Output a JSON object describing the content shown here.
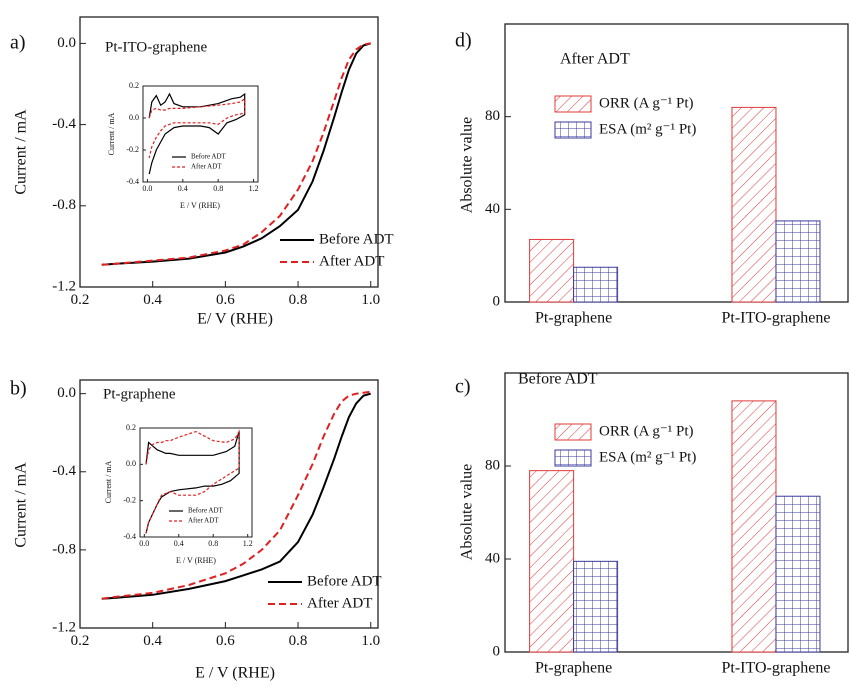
{
  "chart_data": [
    {
      "type": "line",
      "panel_label": "a)",
      "annotation": "Pt-ITO-graphene",
      "xlabel": "E/ V  (RHE)",
      "ylabel": "Current / mA",
      "xlim": [
        0.2,
        1.02
      ],
      "ylim": [
        -1.2,
        0.13
      ],
      "xticks": [
        0.2,
        0.4,
        0.6,
        0.8,
        {
          "value": 1,
          "label": "1.0"
        }
      ],
      "yticks": [
        -1.2,
        -0.8,
        -0.4,
        {
          "value": 0,
          "label": "0.0"
        }
      ],
      "x": [
        0.26,
        0.3,
        0.4,
        0.5,
        0.6,
        0.65,
        0.7,
        0.75,
        0.8,
        0.84,
        0.87,
        0.9,
        0.92,
        0.94,
        0.96,
        0.98,
        1.0
      ],
      "series": [
        {
          "name": "Before ADT",
          "color": "#000000",
          "style": "solid",
          "values": [
            -1.09,
            -1.085,
            -1.075,
            -1.06,
            -1.03,
            -1.0,
            -0.96,
            -0.9,
            -0.82,
            -0.68,
            -0.53,
            -0.36,
            -0.24,
            -0.13,
            -0.05,
            -0.01,
            0.0
          ]
        },
        {
          "name": "After ADT",
          "color": "#e02020",
          "style": "dashed",
          "values": [
            -1.09,
            -1.085,
            -1.07,
            -1.055,
            -1.02,
            -0.99,
            -0.93,
            -0.85,
            -0.72,
            -0.58,
            -0.44,
            -0.28,
            -0.17,
            -0.08,
            -0.03,
            -0.005,
            0.0
          ]
        }
      ]
    },
    {
      "type": "line",
      "xlabel": "E / V  (RHE)",
      "ylabel": "Current / mA",
      "xlim": [
        -0.05,
        1.25
      ],
      "ylim": [
        -0.4,
        0.2
      ],
      "xticks": [
        {
          "value": 0,
          "label": "0.0"
        },
        0.4,
        0.8,
        1.2
      ],
      "yticks": [
        -0.4,
        -0.2,
        {
          "value": 0,
          "label": "0.0"
        },
        0.2
      ],
      "x": [
        0.02,
        0.05,
        0.1,
        0.15,
        0.2,
        0.25,
        0.3,
        0.4,
        0.6,
        0.8,
        0.95,
        1.05,
        1.1,
        1.1,
        1.0,
        0.9,
        0.8,
        0.7,
        0.6,
        0.4,
        0.3,
        0.2,
        0.15,
        0.1,
        0.05,
        0.02
      ],
      "series": [
        {
          "name": "Before ADT",
          "color": "#000000",
          "style": "solid",
          "values": [
            0.0,
            0.1,
            0.14,
            0.08,
            0.1,
            0.15,
            0.09,
            0.07,
            0.07,
            0.09,
            0.12,
            0.13,
            0.15,
            0.02,
            -0.01,
            -0.03,
            -0.1,
            -0.06,
            -0.05,
            -0.05,
            -0.06,
            -0.1,
            -0.15,
            -0.2,
            -0.28,
            -0.35
          ]
        },
        {
          "name": "After ADT",
          "color": "#e02020",
          "style": "dashed",
          "values": [
            0.0,
            0.05,
            0.06,
            0.05,
            0.05,
            0.06,
            0.06,
            0.06,
            0.07,
            0.08,
            0.09,
            0.1,
            0.12,
            0.03,
            0.02,
            0.0,
            -0.04,
            -0.03,
            -0.03,
            -0.03,
            -0.03,
            -0.05,
            -0.08,
            -0.12,
            -0.18,
            -0.25
          ]
        }
      ]
    },
    {
      "type": "line",
      "panel_label": "b)",
      "annotation": "Pt-graphene",
      "xlabel": "E / V  (RHE)",
      "ylabel": "Current / mA",
      "xlim": [
        0.2,
        1.02
      ],
      "ylim": [
        -1.2,
        0.07
      ],
      "xticks": [
        0.2,
        0.4,
        0.6,
        0.8,
        {
          "value": 1,
          "label": "1.0"
        }
      ],
      "yticks": [
        -1.2,
        -0.8,
        -0.4,
        {
          "value": 0,
          "label": "0.0"
        }
      ],
      "x": [
        0.26,
        0.3,
        0.4,
        0.5,
        0.6,
        0.65,
        0.7,
        0.75,
        0.8,
        0.84,
        0.87,
        0.9,
        0.92,
        0.94,
        0.96,
        0.98,
        1.0
      ],
      "series": [
        {
          "name": "Before ADT",
          "color": "#000000",
          "style": "solid",
          "values": [
            -1.05,
            -1.045,
            -1.03,
            -1.0,
            -0.96,
            -0.93,
            -0.9,
            -0.86,
            -0.76,
            -0.62,
            -0.48,
            -0.33,
            -0.22,
            -0.12,
            -0.05,
            -0.01,
            0.0
          ]
        },
        {
          "name": "After ADT",
          "color": "#e02020",
          "style": "dashed",
          "values": [
            -1.05,
            -1.04,
            -1.02,
            -0.98,
            -0.92,
            -0.87,
            -0.8,
            -0.7,
            -0.52,
            -0.36,
            -0.22,
            -0.1,
            -0.04,
            -0.01,
            0.0,
            0.005,
            0.01
          ]
        }
      ]
    },
    {
      "type": "line",
      "xlabel": "E / V  (RHE)",
      "ylabel": "Current / mA",
      "xlim": [
        -0.05,
        1.25
      ],
      "ylim": [
        -0.4,
        0.2
      ],
      "xticks": [
        {
          "value": 0,
          "label": "0.0"
        },
        0.4,
        0.8,
        1.2
      ],
      "yticks": [
        -0.4,
        -0.2,
        {
          "value": 0,
          "label": "0.0"
        },
        0.2
      ],
      "x": [
        0.02,
        0.05,
        0.1,
        0.15,
        0.2,
        0.25,
        0.3,
        0.4,
        0.6,
        0.8,
        0.95,
        1.05,
        1.1,
        1.1,
        1.0,
        0.9,
        0.8,
        0.7,
        0.6,
        0.4,
        0.3,
        0.2,
        0.15,
        0.1,
        0.05,
        0.02
      ],
      "series": [
        {
          "name": "Before ADT",
          "color": "#000000",
          "style": "solid",
          "values": [
            0.0,
            0.12,
            0.1,
            0.08,
            0.07,
            0.06,
            0.06,
            0.05,
            0.05,
            0.05,
            0.07,
            0.1,
            0.18,
            -0.05,
            -0.09,
            -0.11,
            -0.12,
            -0.12,
            -0.13,
            -0.14,
            -0.15,
            -0.18,
            -0.22,
            -0.27,
            -0.32,
            -0.38
          ]
        },
        {
          "name": "After ADT",
          "color": "#e02020",
          "style": "dashed",
          "values": [
            0.0,
            0.08,
            0.11,
            0.12,
            0.12,
            0.13,
            0.13,
            0.15,
            0.18,
            0.13,
            0.12,
            0.14,
            0.18,
            -0.02,
            -0.05,
            -0.08,
            -0.11,
            -0.15,
            -0.17,
            -0.17,
            -0.15,
            -0.17,
            -0.22,
            -0.27,
            -0.32,
            -0.38
          ]
        }
      ]
    },
    {
      "type": "bar",
      "panel_label": "d)",
      "subtitle": "After ADT",
      "ylabel": "Absolute value",
      "categories": [
        "Pt-graphene",
        "Pt-ITO-graphene"
      ],
      "ylim": [
        0,
        120
      ],
      "yticks": [
        0,
        40,
        80
      ],
      "series": [
        {
          "name": "ORR (A g⁻¹ Pt)",
          "color": "#e03a3a",
          "hatch": "diagonal",
          "values": [
            27,
            84
          ]
        },
        {
          "name": "ESA (m² g⁻¹ Pt)",
          "color": "#3a3a9e",
          "hatch": "grid",
          "values": [
            15,
            35
          ]
        }
      ]
    },
    {
      "type": "bar",
      "panel_label": "c)",
      "subtitle": "Before ADT",
      "ylabel": "Absolute value",
      "categories": [
        "Pt-graphene",
        "Pt-ITO-graphene"
      ],
      "ylim": [
        0,
        120
      ],
      "yticks": [
        0,
        40,
        80
      ],
      "series": [
        {
          "name": "ORR (A g⁻¹ Pt)",
          "color": "#e03a3a",
          "hatch": "diagonal",
          "values": [
            78,
            108
          ]
        },
        {
          "name": "ESA (m² g⁻¹ Pt)",
          "color": "#3a3a9e",
          "hatch": "grid",
          "values": [
            39,
            67
          ]
        }
      ]
    }
  ]
}
